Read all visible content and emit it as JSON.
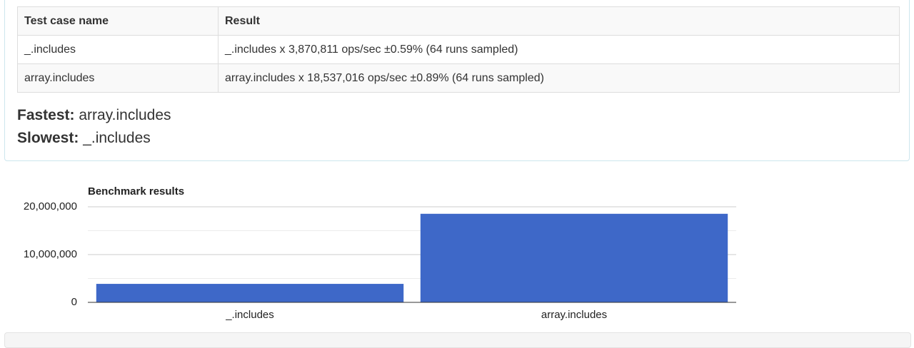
{
  "table": {
    "header": [
      "Test case name",
      "Result"
    ],
    "rows": [
      [
        "_.includes",
        "_.includes x 3,870,811 ops/sec ±0.59% (64 runs sampled)"
      ],
      [
        "array.includes",
        "array.includes x 18,537,016 ops/sec ±0.89% (64 runs sampled)"
      ]
    ]
  },
  "summary": {
    "fastest_label": "Fastest:",
    "fastest": "array.includes",
    "slowest_label": "Slowest:",
    "slowest": "_.includes"
  },
  "chart_data": {
    "type": "bar",
    "title": "Benchmark results",
    "categories": [
      "_.includes",
      "array.includes"
    ],
    "values": [
      3870811,
      18537016
    ],
    "color": "#3e68c8",
    "ylim": [
      0,
      20000000
    ],
    "yticks": [
      0,
      {
        "value": 10000000,
        "label": "10,000,000"
      },
      {
        "value": 20000000,
        "label": "20,000,000"
      }
    ],
    "minor_yticks": [
      5000000,
      15000000
    ],
    "grid": true
  }
}
